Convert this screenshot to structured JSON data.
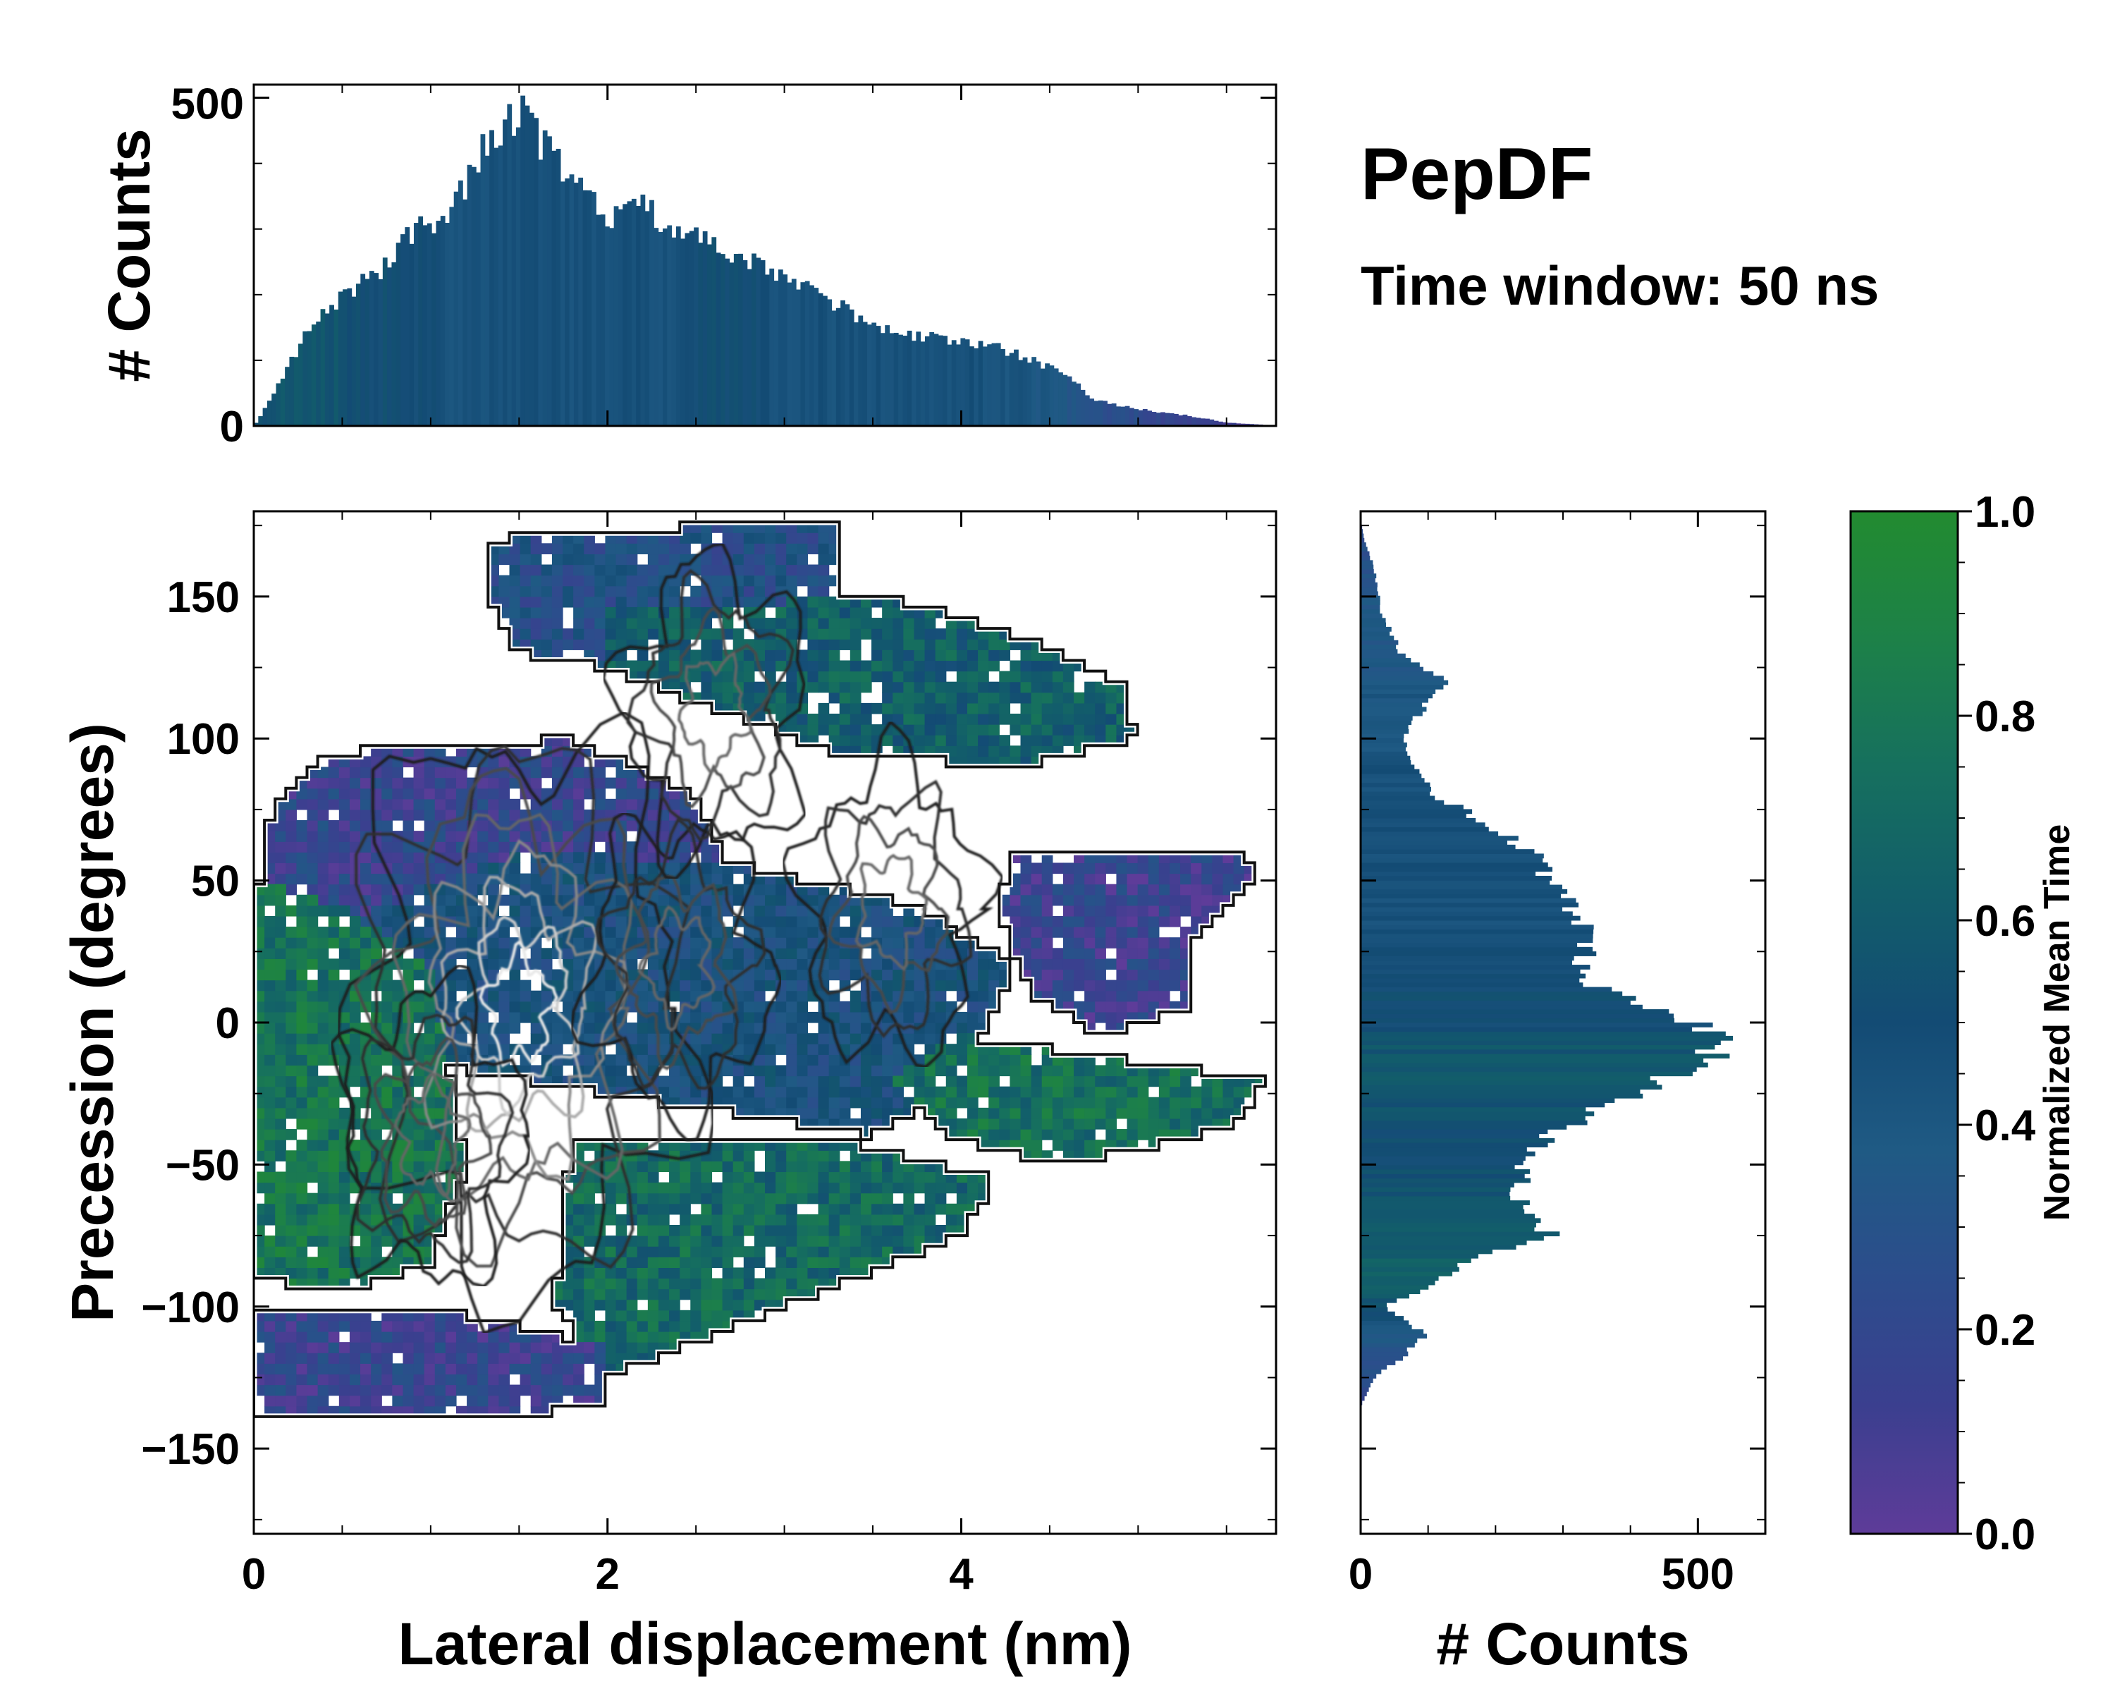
{
  "chart_data": [
    {
      "id": "top_histogram",
      "type": "bar",
      "ylabel": "# Counts",
      "xlim": [
        0,
        5.78
      ],
      "ylim": [
        0,
        520
      ],
      "yticks": [
        0,
        500
      ],
      "ytick_labels": [
        "0",
        "500"
      ],
      "anchors_x": [
        0,
        0.05,
        0.15,
        0.3,
        0.5,
        0.7,
        0.9,
        1.1,
        1.25,
        1.4,
        1.5,
        1.6,
        1.8,
        2.0,
        2.2,
        2.4,
        2.6,
        2.8,
        3.0,
        3.2,
        3.4,
        3.6,
        3.8,
        4.0,
        4.2,
        4.4,
        4.6,
        4.75,
        4.9,
        5.1,
        5.3,
        5.5,
        5.7,
        5.78
      ],
      "anchors_count": [
        0,
        20,
        70,
        140,
        200,
        230,
        300,
        320,
        400,
        460,
        480,
        440,
        370,
        320,
        330,
        300,
        270,
        250,
        225,
        200,
        170,
        145,
        135,
        130,
        120,
        100,
        80,
        40,
        30,
        22,
        15,
        5,
        2,
        0
      ],
      "anchors_color_value": [
        0.5,
        0.55,
        0.6,
        0.6,
        0.55,
        0.5,
        0.5,
        0.45,
        0.45,
        0.45,
        0.45,
        0.45,
        0.45,
        0.45,
        0.45,
        0.45,
        0.5,
        0.5,
        0.45,
        0.45,
        0.45,
        0.45,
        0.45,
        0.45,
        0.45,
        0.4,
        0.35,
        0.3,
        0.25,
        0.2,
        0.15,
        0.1,
        0.1,
        0.1
      ]
    },
    {
      "id": "right_histogram",
      "type": "bar",
      "orientation": "horizontal",
      "xlabel": "# Counts",
      "xlim": [
        0,
        600
      ],
      "ylim": [
        -180,
        180
      ],
      "xticks": [
        0,
        500
      ],
      "xtick_labels": [
        "0",
        "500"
      ],
      "anchors_y": [
        -135,
        -125,
        -118,
        -110,
        -105,
        -100,
        -95,
        -85,
        -75,
        -60,
        -45,
        -30,
        -15,
        -5,
        0,
        5,
        15,
        30,
        45,
        60,
        70,
        80,
        90,
        100,
        110,
        120,
        130,
        145,
        160,
        170,
        178
      ],
      "anchors_count": [
        0,
        20,
        60,
        95,
        70,
        30,
        90,
        150,
        280,
        230,
        250,
        350,
        500,
        540,
        500,
        440,
        320,
        350,
        300,
        250,
        190,
        110,
        80,
        60,
        90,
        130,
        60,
        30,
        20,
        5,
        0
      ],
      "anchors_color_value": [
        0.2,
        0.25,
        0.3,
        0.35,
        0.45,
        0.55,
        0.6,
        0.65,
        0.6,
        0.55,
        0.5,
        0.55,
        0.6,
        0.55,
        0.5,
        0.5,
        0.5,
        0.45,
        0.45,
        0.45,
        0.45,
        0.45,
        0.45,
        0.4,
        0.4,
        0.4,
        0.35,
        0.35,
        0.3,
        0.25,
        0.2
      ]
    },
    {
      "id": "main_heatmap",
      "type": "heatmap",
      "xlabel": "Lateral displacement (nm)",
      "ylabel": "Precession (degrees)",
      "xlim": [
        0,
        5.78
      ],
      "ylim": [
        -180,
        180
      ],
      "xticks": [
        0,
        2,
        4
      ],
      "xtick_labels": [
        "0",
        "2",
        "4"
      ],
      "yticks": [
        -150,
        -100,
        -50,
        0,
        50,
        100,
        150
      ],
      "ytick_labels": [
        "−150",
        "−100",
        "−50",
        "0",
        "50",
        "100",
        "150"
      ],
      "grid": false,
      "cmap": "purple-blue-green",
      "density_centers": [
        [
          1.5,
          5
        ],
        [
          2.4,
          20
        ],
        [
          1.0,
          -40
        ],
        [
          3.6,
          40
        ],
        [
          2.6,
          110
        ]
      ],
      "regions": [
        {
          "name": "upper-blue-lobe",
          "polygon": [
            [
              1.3,
              170
            ],
            [
              3.3,
              178
            ],
            [
              3.3,
              140
            ],
            [
              2.5,
              130
            ],
            [
              2.0,
              125
            ],
            [
              1.5,
              130
            ],
            [
              1.3,
              150
            ]
          ],
          "value": 0.32
        },
        {
          "name": "upper-right-green",
          "polygon": [
            [
              2.0,
              145
            ],
            [
              3.6,
              150
            ],
            [
              4.4,
              135
            ],
            [
              4.9,
              120
            ],
            [
              5.0,
              100
            ],
            [
              4.3,
              90
            ],
            [
              3.3,
              95
            ],
            [
              2.6,
              110
            ],
            [
              2.0,
              125
            ]
          ],
          "value": 0.62
        },
        {
          "name": "left-purple",
          "polygon": [
            [
              0.05,
              70
            ],
            [
              0.4,
              95
            ],
            [
              1.8,
              100
            ],
            [
              2.5,
              80
            ],
            [
              2.7,
              50
            ],
            [
              2.0,
              30
            ],
            [
              1.0,
              20
            ],
            [
              0.05,
              40
            ]
          ],
          "value": 0.18
        },
        {
          "name": "center-blue",
          "polygon": [
            [
              0.7,
              40
            ],
            [
              1.5,
              60
            ],
            [
              2.8,
              55
            ],
            [
              3.8,
              40
            ],
            [
              4.3,
              20
            ],
            [
              4.0,
              -20
            ],
            [
              3.5,
              -40
            ],
            [
              2.5,
              -30
            ],
            [
              1.5,
              -20
            ],
            [
              0.6,
              -10
            ]
          ],
          "value": 0.42
        },
        {
          "name": "right-purple",
          "polygon": [
            [
              4.3,
              60
            ],
            [
              5.7,
              58
            ],
            [
              5.6,
              45
            ],
            [
              5.3,
              30
            ],
            [
              5.3,
              5
            ],
            [
              4.8,
              -5
            ],
            [
              4.4,
              10
            ],
            [
              4.2,
              40
            ]
          ],
          "value": 0.15
        },
        {
          "name": "left-green",
          "polygon": [
            [
              0.02,
              50
            ],
            [
              0.5,
              40
            ],
            [
              1.0,
              20
            ],
            [
              1.2,
              -50
            ],
            [
              1.0,
              -85
            ],
            [
              0.5,
              -95
            ],
            [
              0.02,
              -90
            ]
          ],
          "value": 0.78
        },
        {
          "name": "lower-right-green",
          "polygon": [
            [
              4.0,
              -5
            ],
            [
              5.7,
              -20
            ],
            [
              5.6,
              -35
            ],
            [
              5.0,
              -45
            ],
            [
              4.5,
              -50
            ],
            [
              3.9,
              -40
            ],
            [
              3.6,
              -20
            ]
          ],
          "value": 0.75
        },
        {
          "name": "lower-center-green",
          "polygon": [
            [
              1.8,
              -40
            ],
            [
              3.2,
              -40
            ],
            [
              4.2,
              -55
            ],
            [
              4.0,
              -75
            ],
            [
              3.2,
              -95
            ],
            [
              2.6,
              -110
            ],
            [
              2.0,
              -125
            ],
            [
              1.7,
              -100
            ]
          ],
          "value": 0.7
        },
        {
          "name": "bottom-purple",
          "polygon": [
            [
              0.02,
              -100
            ],
            [
              0.8,
              -100
            ],
            [
              1.4,
              -105
            ],
            [
              2.0,
              -115
            ],
            [
              2.0,
              -135
            ],
            [
              1.2,
              -140
            ],
            [
              0.02,
              -138
            ]
          ],
          "value": 0.17
        }
      ]
    },
    {
      "id": "colorbar",
      "type": "colorbar",
      "label": "Normalized Mean Time",
      "range": [
        0.0,
        1.0
      ],
      "ticks": [
        0.0,
        0.2,
        0.4,
        0.6,
        0.8,
        1.0
      ],
      "tick_labels": [
        "0.0",
        "0.2",
        "0.4",
        "0.6",
        "0.8",
        "1.0"
      ],
      "colors": [
        "#5e3c99",
        "#3b3f8f",
        "#2c4d8c",
        "#1f5a84",
        "#134b74",
        "#125e6a",
        "#16705e",
        "#1d8148",
        "#228b30"
      ]
    }
  ],
  "annotations": {
    "title": "PepDF",
    "subtitle": "Time window: 50 ns"
  }
}
